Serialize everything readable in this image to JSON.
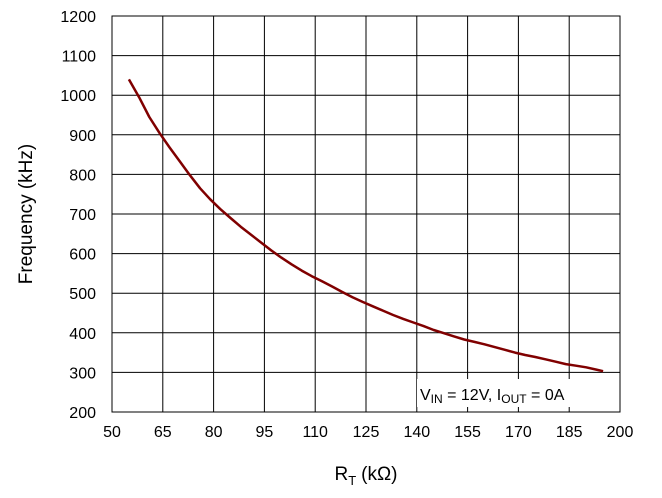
{
  "chart_data": {
    "type": "line",
    "xlabel": {
      "main": "R",
      "sub": "T",
      "unit": "(kΩ)"
    },
    "ylabel": "Frequency (kHz)",
    "xlim": [
      50,
      200
    ],
    "ylim": [
      200,
      1200
    ],
    "xticks": [
      "50",
      "65",
      "80",
      "95",
      "110",
      "125",
      "140",
      "155",
      "170",
      "185",
      "200"
    ],
    "yticks": [
      "200",
      "300",
      "400",
      "500",
      "600",
      "700",
      "800",
      "900",
      "1000",
      "1100",
      "1200"
    ],
    "grid": true,
    "annotation": {
      "part1_main": "V",
      "part1_sub": "IN",
      "part1_rest": " = 12V, I",
      "part2_sub": "OUT",
      "part2_rest": " = 0A"
    },
    "series": [
      {
        "color": "#800000",
        "x": [
          55,
          58,
          61,
          64,
          67,
          70,
          73,
          76,
          79,
          82,
          85,
          88,
          91,
          94,
          97,
          100,
          103,
          106,
          109,
          112,
          115,
          118,
          121,
          124,
          127,
          130,
          133,
          136,
          139,
          142,
          145,
          148,
          151,
          154,
          157,
          160,
          163,
          166,
          169,
          172,
          175,
          178,
          181,
          184,
          187,
          190,
          193,
          195
        ],
        "y": [
          1040,
          995,
          945,
          905,
          868,
          833,
          798,
          765,
          737,
          712,
          690,
          668,
          648,
          628,
          608,
          590,
          573,
          557,
          543,
          530,
          517,
          503,
          490,
          478,
          467,
          456,
          445,
          435,
          426,
          417,
          407,
          399,
          391,
          383,
          377,
          371,
          364,
          357,
          350,
          344,
          339,
          333,
          327,
          321,
          317,
          313,
          307,
          303
        ]
      }
    ]
  }
}
